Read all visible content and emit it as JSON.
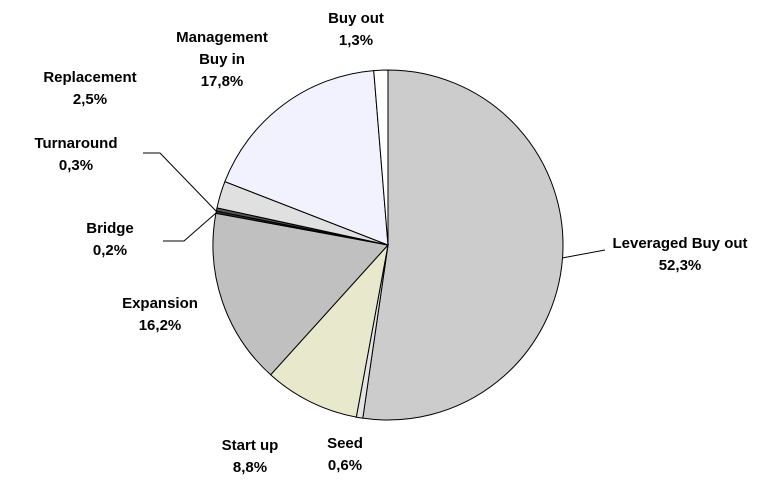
{
  "chart_data": {
    "type": "pie",
    "categories": [
      "Leveraged Buy out",
      "Seed",
      "Start up",
      "Expansion",
      "Bridge",
      "Turnaround",
      "Replacement",
      "Management Buy in",
      "Buy out"
    ],
    "values": [
      52.3,
      0.6,
      8.8,
      16.2,
      0.2,
      0.3,
      2.5,
      17.8,
      1.3
    ],
    "value_labels": [
      "52,3%",
      "0,6%",
      "8,8%",
      "16,2%",
      "0,2%",
      "0,3%",
      "2,5%",
      "17,8%",
      "1,3%"
    ],
    "colors": [
      "#cccccc",
      "#e4e4e4",
      "#e8e8cc",
      "#c0c0c0",
      "#333333",
      "#555555",
      "#e0e0e0",
      "#f2f2ff",
      "#ffffff"
    ]
  }
}
